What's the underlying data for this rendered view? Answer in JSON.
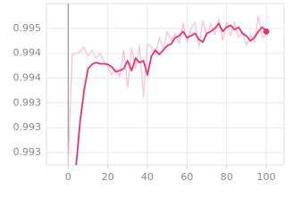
{
  "chart_data": {
    "type": "line",
    "x": [
      0,
      2,
      4,
      6,
      8,
      10,
      12,
      14,
      16,
      18,
      20,
      22,
      24,
      26,
      28,
      30,
      32,
      34,
      36,
      38,
      40,
      42,
      44,
      46,
      48,
      50,
      52,
      54,
      56,
      58,
      60,
      62,
      64,
      66,
      68,
      70,
      72,
      74,
      76,
      78,
      80,
      82,
      84,
      86,
      88,
      90,
      92,
      94,
      96,
      98,
      100
    ],
    "series": [
      {
        "color": "#f7c3d6",
        "values": [
          0.9924,
          0.99418,
          0.9942,
          0.99422,
          0.9943,
          0.99415,
          0.99425,
          0.99412,
          0.9942,
          0.99408,
          0.99398,
          0.99385,
          0.99395,
          0.99382,
          0.99425,
          0.99365,
          0.99428,
          0.99395,
          0.99432,
          0.9935,
          0.99435,
          0.9943,
          0.99418,
          0.99445,
          0.99428,
          0.99455,
          0.9944,
          0.99452,
          0.99435,
          0.99468,
          0.99438,
          0.9946,
          0.9947,
          0.9943,
          0.99472,
          0.99448,
          0.99468,
          0.9945,
          0.99475,
          0.9944,
          0.9947,
          0.99448,
          0.9947,
          0.99445,
          0.99455,
          0.99432,
          0.9945,
          0.99438,
          0.9948,
          0.99445,
          0.9945
        ]
      },
      {
        "color": "#e8336f",
        "values": [
          null,
          null,
          0.9924,
          0.9931,
          0.9936,
          0.99395,
          0.99402,
          0.99405,
          0.99403,
          0.99403,
          0.99402,
          0.99398,
          0.9939,
          0.99392,
          0.99395,
          0.99408,
          0.99392,
          0.99412,
          0.99405,
          0.99408,
          0.99385,
          0.99415,
          0.99425,
          0.99418,
          0.99425,
          0.99432,
          0.99435,
          0.99445,
          0.99448,
          0.99455,
          0.99445,
          0.99448,
          0.99452,
          0.99442,
          0.99438,
          0.99452,
          0.99455,
          0.9946,
          0.99468,
          0.99455,
          0.99462,
          0.99465,
          0.99458,
          0.99462,
          0.99452,
          0.99448,
          0.9944,
          0.99445,
          0.99455,
          0.99462,
          0.99455
        ]
      }
    ],
    "xlim": [
      -11,
      109
    ],
    "xticks": [
      0,
      20,
      40,
      60,
      80,
      100
    ],
    "ylim": [
      0.9924,
      0.995
    ],
    "yticks": [
      {
        "value": 0.9926,
        "label": "0.993"
      },
      {
        "value": 0.993,
        "label": "0.993"
      },
      {
        "value": 0.9934,
        "label": "0.993"
      },
      {
        "value": 0.9938,
        "label": "0.994"
      },
      {
        "value": 0.9942,
        "label": "0.994"
      },
      {
        "value": 0.9946,
        "label": "0.995"
      }
    ],
    "grid": true
  }
}
